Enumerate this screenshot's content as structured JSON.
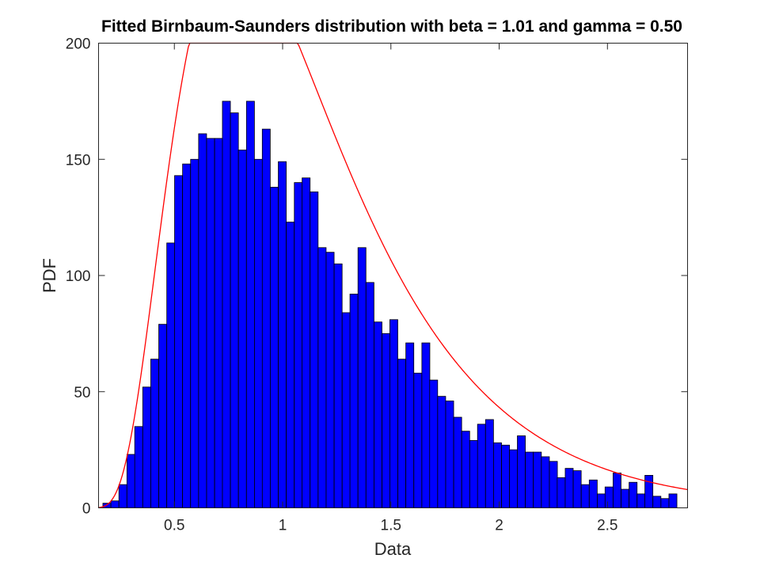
{
  "chart_data": {
    "type": "bar",
    "title": "Fitted Birnbaum-Saunders distribution with beta = 1.01 and gamma = 0.50",
    "xlabel": "Data",
    "ylabel": "PDF",
    "xlim": [
      0.15,
      2.87
    ],
    "ylim": [
      0,
      200
    ],
    "xticks": [
      0.5,
      1,
      1.5,
      2,
      2.5
    ],
    "xtick_labels": [
      "0.5",
      "1",
      "1.5",
      "2",
      "2.5"
    ],
    "yticks": [
      0,
      50,
      100,
      150,
      200
    ],
    "ytick_labels": [
      "0",
      "50",
      "100",
      "150",
      "200"
    ],
    "grid": false,
    "bar_color": "#0000ff",
    "bar_edge_color": "#000000",
    "curve_color": "#ff0000",
    "bin_width": 0.0368,
    "bin_starts": [
      0.17,
      0.207,
      0.244,
      0.281,
      0.317,
      0.354,
      0.391,
      0.428,
      0.465,
      0.501,
      0.538,
      0.575,
      0.612,
      0.649,
      0.686,
      0.722,
      0.759,
      0.796,
      0.833,
      0.87,
      0.906,
      0.943,
      0.98,
      1.017,
      1.054,
      1.09,
      1.127,
      1.164,
      1.201,
      1.238,
      1.275,
      1.311,
      1.348,
      1.385,
      1.422,
      1.459,
      1.495,
      1.532,
      1.569,
      1.606,
      1.643,
      1.679,
      1.716,
      1.753,
      1.79,
      1.827,
      1.864,
      1.9,
      1.937,
      1.974,
      2.011,
      2.048,
      2.084,
      2.121,
      2.158,
      2.195,
      2.232,
      2.268,
      2.305,
      2.342,
      2.379,
      2.416,
      2.453,
      2.489,
      2.526,
      2.563,
      2.6,
      2.637,
      2.673,
      2.71,
      2.747,
      2.784
    ],
    "counts": [
      2,
      3,
      10,
      23,
      35,
      52,
      64,
      79,
      114,
      143,
      148,
      150,
      161,
      159,
      159,
      175,
      170,
      154,
      175,
      150,
      163,
      138,
      149,
      123,
      140,
      142,
      136,
      112,
      110,
      105,
      84,
      92,
      112,
      97,
      80,
      75,
      81,
      64,
      71,
      58,
      71,
      55,
      48,
      46,
      39,
      33,
      29,
      36,
      38,
      28,
      27,
      25,
      31,
      24,
      24,
      22,
      20,
      13,
      17,
      16,
      10,
      12,
      6,
      9,
      15,
      8,
      11,
      6,
      14,
      5,
      4,
      6
    ],
    "fit_curve": {
      "name": "Birnbaum-Saunders fit",
      "beta": 1.01,
      "gamma": 0.5,
      "scale": 270
    }
  }
}
